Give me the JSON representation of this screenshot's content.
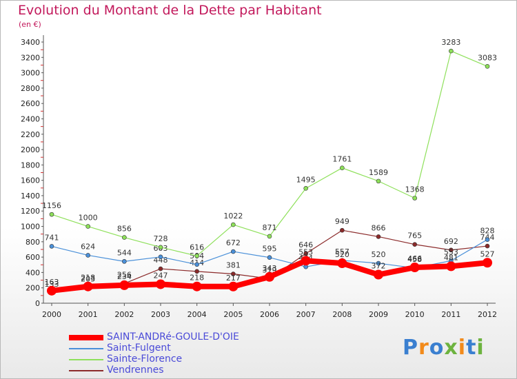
{
  "header": {
    "title": "Evolution du Montant de la Dette par Habitant",
    "unit": "(en €)"
  },
  "logo_text": "Proxiti",
  "chart_data": {
    "type": "line",
    "title": "Evolution du Montant de la Dette par Habitant",
    "ylabel": "(en €)",
    "xlabel": "",
    "categories": [
      "2000",
      "2001",
      "2002",
      "2003",
      "2004",
      "2005",
      "2006",
      "2007",
      "2008",
      "2009",
      "2010",
      "2011",
      "2012"
    ],
    "ylim": [
      0,
      3400
    ],
    "yticks": [
      0,
      200,
      400,
      600,
      800,
      1000,
      1200,
      1400,
      1600,
      1800,
      2000,
      2200,
      2400,
      2600,
      2800,
      3000,
      3200,
      3400
    ],
    "grid": false,
    "legend_position": "bottom-left",
    "series": [
      {
        "name": "SAINT-ANDRé-GOULE-D'OIE",
        "color": "#ff0000",
        "width": 8,
        "marker": 7,
        "values": [
          163,
          218,
          234,
          247,
          218,
          217,
          343,
          553,
          520,
          372,
          466,
          481,
          527
        ]
      },
      {
        "name": "Saint-Fulgent",
        "color": "#4a90d9",
        "width": 1.2,
        "marker": 3,
        "values": [
          741,
          624,
          544,
          603,
          504,
          672,
          595,
          474,
          557,
          520,
          458,
          553,
          828
        ]
      },
      {
        "name": "Sainte-Florence",
        "color": "#8ee05a",
        "width": 1.2,
        "marker": 3,
        "values": [
          1156,
          1000,
          856,
          728,
          616,
          1022,
          871,
          1495,
          1761,
          1589,
          1368,
          3283,
          3083
        ]
      },
      {
        "name": "Vendrennes",
        "color": "#8b2a2a",
        "width": 1.2,
        "marker": 3,
        "values": [
          133,
          203,
          256,
          448,
          414,
          381,
          319,
          646,
          949,
          866,
          765,
          692,
          744
        ]
      }
    ]
  }
}
